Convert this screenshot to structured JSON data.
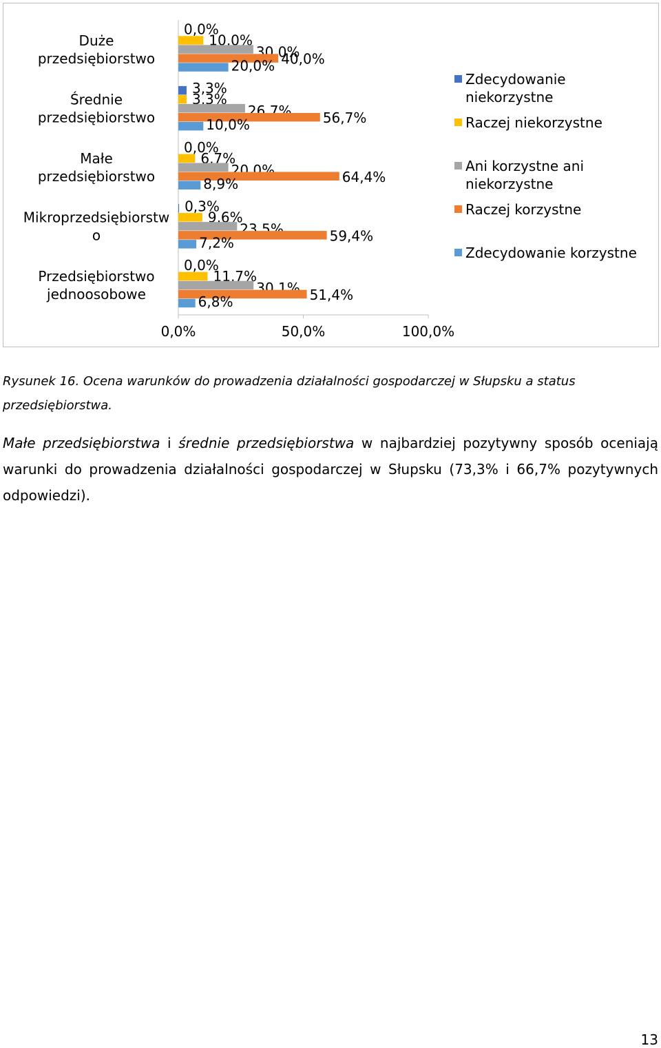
{
  "chart_data": {
    "type": "bar",
    "orientation": "horizontal",
    "categories": [
      [
        "Duże",
        "przedsiębiorstwo"
      ],
      [
        "Średnie",
        "przedsiębiorstwo"
      ],
      [
        "Małe",
        "przedsiębiorstwo"
      ],
      [
        "Mikroprzedsiębiorstw",
        "o"
      ],
      [
        "Przedsiębiorstwo",
        "jednoosobowe"
      ]
    ],
    "series": [
      {
        "name": "Zdecydowanie niekorzystne",
        "legend_lines": [
          "Zdecydowanie",
          "niekorzystne"
        ],
        "color": "#4472C4",
        "values": [
          0.0,
          3.3,
          0.0,
          0.3,
          0.0
        ],
        "labels": [
          "0,0%",
          "3,3%",
          "0,0%",
          "0,3%",
          "0,0%"
        ]
      },
      {
        "name": "Raczej niekorzystne",
        "legend_lines": [
          "Raczej niekorzystne"
        ],
        "color": "#FFC000",
        "values": [
          10.0,
          3.3,
          6.7,
          9.6,
          11.7
        ],
        "labels": [
          "10,0%",
          "3,3%",
          "6,7%",
          "9,6%",
          "11,7%"
        ]
      },
      {
        "name": "Ani korzystne ani niekorzystne",
        "legend_lines": [
          "Ani korzystne ani",
          "niekorzystne"
        ],
        "color": "#A5A5A5",
        "values": [
          30.0,
          26.7,
          20.0,
          23.5,
          30.1
        ],
        "labels": [
          "30,0%",
          "26,7%",
          "20,0%",
          "23,5%",
          "30,1%"
        ]
      },
      {
        "name": "Raczej korzystne",
        "legend_lines": [
          "Raczej korzystne"
        ],
        "color": "#ED7D31",
        "values": [
          40.0,
          56.7,
          64.4,
          59.4,
          51.4
        ],
        "labels": [
          "40,0%",
          "56,7%",
          "64,4%",
          "59,4%",
          "51,4%"
        ]
      },
      {
        "name": "Zdecydowanie korzystne",
        "legend_lines": [
          "Zdecydowanie korzystne"
        ],
        "color": "#5B9BD5",
        "values": [
          20.0,
          10.0,
          8.9,
          7.2,
          6.8
        ],
        "labels": [
          "20,0%",
          "10,0%",
          "8,9%",
          "7,2%",
          "6,8%"
        ]
      }
    ],
    "xlim": [
      0,
      100
    ],
    "x_ticks": [
      0,
      50,
      100
    ],
    "x_tick_labels": [
      "0,0%",
      "50,0%",
      "100,0%"
    ],
    "grid": false,
    "legend_position": "right"
  },
  "caption": "Rysunek 16. Ocena warunków do prowadzenia działalności gospodarczej w Słupsku a status przedsiębiorstwa.",
  "paragraph": {
    "part1": "Małe przedsiębiorstwa",
    "part2": " i ",
    "part3": "średnie przedsiębiorstwa",
    "part4": " w najbardziej pozytywny sposób oceniają warunki do prowadzenia działalności gospodarczej w Słupsku (73,3% i 66,7% pozytywnych odpowiedzi)."
  },
  "page_number": "13"
}
